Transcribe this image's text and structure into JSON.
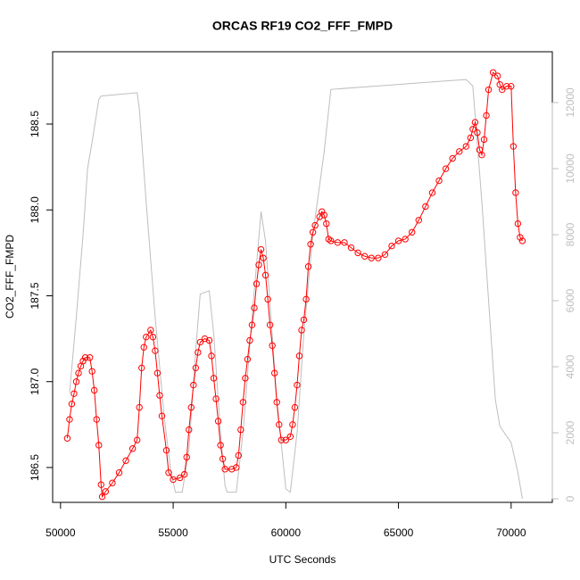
{
  "chart_data": {
    "type": "line",
    "title": "ORCAS RF19 CO2_FFF_FMPD",
    "x_label": "UTC Seconds",
    "y_label": "CO2_FFF_FMPD",
    "xlim": [
      49650,
      71829
    ],
    "ylim": [
      186.297,
      188.921
    ],
    "y2lim": [
      -108,
      13540
    ],
    "xticks": [
      50000,
      55000,
      60000,
      65000,
      70000
    ],
    "yticks": [
      186.5,
      {
        "value": 187,
        "label": "187.0"
      },
      187.5,
      {
        "value": 188,
        "label": "188.0"
      },
      188.5
    ],
    "y2ticks": [
      0,
      2000,
      4000,
      6000,
      8000,
      10000,
      12000
    ],
    "series": [
      {
        "color": "#ff0000",
        "markers": true,
        "axis": "y",
        "x": [
          50300,
          50400,
          50500,
          50600,
          50700,
          50800,
          50900,
          51000,
          51100,
          51300,
          51400,
          51500,
          51600,
          51700,
          51800,
          51850,
          52000,
          52300,
          52600,
          52900,
          53200,
          53400,
          53500,
          53600,
          53700,
          53800,
          54000,
          54100,
          54200,
          54300,
          54400,
          54500,
          54700,
          54800,
          55000,
          55300,
          55500,
          55600,
          55700,
          55800,
          55900,
          56000,
          56100,
          56200,
          56400,
          56600,
          56700,
          56800,
          56900,
          57000,
          57100,
          57200,
          57300,
          57600,
          57800,
          57900,
          58000,
          58100,
          58200,
          58300,
          58400,
          58500,
          58600,
          58700,
          58800,
          58900,
          59000,
          59100,
          59200,
          59300,
          59400,
          59500,
          59600,
          59700,
          59800,
          60000,
          60200,
          60300,
          60400,
          60500,
          60600,
          60700,
          60800,
          60900,
          61000,
          61100,
          61200,
          61300,
          61500,
          61600,
          61700,
          61800,
          61900,
          62000,
          62300,
          62600,
          62900,
          63200,
          63500,
          63800,
          64100,
          64400,
          64700,
          65000,
          65300,
          65600,
          65900,
          66200,
          66500,
          66800,
          67100,
          67400,
          67700,
          68000,
          68200,
          68300,
          68400,
          68500,
          68600,
          68700,
          68800,
          68900,
          69000,
          69200,
          69400,
          69500,
          69600,
          69800,
          70000,
          70100,
          70200,
          70300,
          70400,
          70500
        ],
        "values": [
          186.67,
          186.78,
          186.87,
          186.93,
          187.0,
          187.05,
          187.09,
          187.12,
          187.14,
          187.14,
          187.06,
          186.95,
          186.78,
          186.63,
          186.4,
          186.33,
          186.36,
          186.41,
          186.47,
          186.54,
          186.61,
          186.66,
          186.85,
          187.08,
          187.2,
          187.26,
          187.3,
          187.26,
          187.18,
          187.05,
          186.92,
          186.8,
          186.6,
          186.47,
          186.43,
          186.44,
          186.46,
          186.56,
          186.72,
          186.85,
          186.98,
          187.08,
          187.17,
          187.23,
          187.25,
          187.24,
          187.15,
          187.02,
          186.9,
          186.77,
          186.63,
          186.55,
          186.49,
          186.49,
          186.5,
          186.57,
          186.72,
          186.88,
          187.02,
          187.13,
          187.24,
          187.33,
          187.43,
          187.57,
          187.68,
          187.77,
          187.72,
          187.62,
          187.48,
          187.33,
          187.21,
          187.05,
          186.88,
          186.75,
          186.66,
          186.66,
          186.68,
          186.75,
          186.85,
          186.98,
          187.15,
          187.3,
          187.36,
          187.48,
          187.67,
          187.8,
          187.87,
          187.91,
          187.96,
          187.99,
          187.97,
          187.92,
          187.83,
          187.82,
          187.81,
          187.81,
          187.78,
          187.75,
          187.73,
          187.72,
          187.72,
          187.74,
          187.79,
          187.82,
          187.83,
          187.87,
          187.94,
          188.02,
          188.1,
          188.17,
          188.24,
          188.3,
          188.34,
          188.37,
          188.42,
          188.47,
          188.51,
          188.45,
          188.35,
          188.32,
          188.41,
          188.55,
          188.7,
          188.8,
          188.78,
          188.73,
          188.7,
          188.72,
          188.72,
          188.37,
          188.1,
          187.92,
          187.84,
          187.82
        ]
      },
      {
        "color": "#bebebe",
        "markers": false,
        "axis": "y2",
        "x": [
          50400,
          50700,
          51000,
          51200,
          51400,
          51700,
          51800,
          53400,
          53500,
          53800,
          54200,
          54600,
          54900,
          55100,
          55400,
          55700,
          56000,
          56200,
          56600,
          56800,
          57100,
          57300,
          57400,
          57800,
          58100,
          58500,
          58900,
          59100,
          59600,
          60000,
          60200,
          60500,
          60800,
          61200,
          61700,
          62000,
          64000,
          66000,
          68000,
          68300,
          68700,
          69000,
          69300,
          69500,
          69800,
          70000,
          70300,
          70500
        ],
        "values": [
          3200,
          5500,
          8000,
          10000,
          10800,
          12100,
          12200,
          12300,
          11800,
          9000,
          5500,
          2500,
          800,
          200,
          200,
          1500,
          4500,
          6200,
          6300,
          5000,
          2000,
          400,
          200,
          200,
          2000,
          5500,
          8700,
          7800,
          3000,
          300,
          200,
          2000,
          5000,
          8000,
          10500,
          12400,
          12500,
          12600,
          12700,
          12500,
          9000,
          6000,
          3000,
          2200,
          1900,
          1700,
          800,
          0
        ]
      }
    ]
  }
}
